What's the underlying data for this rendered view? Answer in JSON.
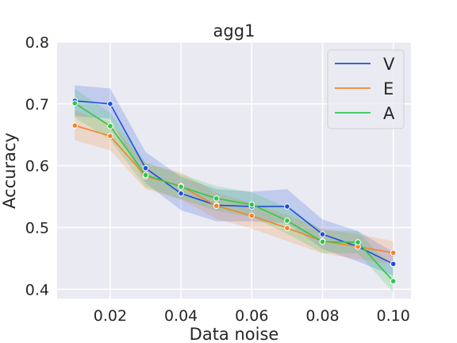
{
  "chart_data": {
    "type": "line",
    "title": "agg1",
    "xlabel": "Data noise",
    "ylabel": "Accuracy",
    "xlim": [
      0.005,
      0.105
    ],
    "ylim": [
      0.385,
      0.8
    ],
    "xticks": [
      "0.02",
      "0.04",
      "0.06",
      "0.08",
      "0.10"
    ],
    "yticks": [
      "0.4",
      "0.5",
      "0.6",
      "0.7",
      "0.8"
    ],
    "grid": true,
    "legend_position": "top-right",
    "x": [
      0.01,
      0.02,
      0.03,
      0.04,
      0.05,
      0.06,
      0.07,
      0.08,
      0.09,
      0.1
    ],
    "series": [
      {
        "name": "V",
        "color": "#1f4fe0",
        "values": [
          0.705,
          0.7,
          0.596,
          0.555,
          0.536,
          0.534,
          0.534,
          0.489,
          0.469,
          0.441
        ],
        "lower": [
          0.68,
          0.676,
          0.572,
          0.528,
          0.51,
          0.51,
          0.507,
          0.465,
          0.445,
          0.422
        ],
        "upper": [
          0.73,
          0.725,
          0.622,
          0.582,
          0.562,
          0.558,
          0.562,
          0.513,
          0.494,
          0.46
        ]
      },
      {
        "name": "E",
        "color": "#f5832a",
        "values": [
          0.665,
          0.648,
          0.583,
          0.567,
          0.535,
          0.519,
          0.499,
          0.478,
          0.469,
          0.459
        ],
        "lower": [
          0.641,
          0.625,
          0.562,
          0.545,
          0.514,
          0.498,
          0.478,
          0.458,
          0.449,
          0.44
        ],
        "upper": [
          0.689,
          0.671,
          0.604,
          0.589,
          0.556,
          0.54,
          0.52,
          0.498,
          0.489,
          0.478
        ]
      },
      {
        "name": "A",
        "color": "#2ec84a",
        "values": [
          0.701,
          0.664,
          0.585,
          0.566,
          0.547,
          0.537,
          0.511,
          0.477,
          0.476,
          0.413
        ],
        "lower": [
          0.678,
          0.642,
          0.565,
          0.546,
          0.527,
          0.517,
          0.49,
          0.459,
          0.458,
          0.395
        ],
        "upper": [
          0.724,
          0.686,
          0.605,
          0.586,
          0.567,
          0.557,
          0.532,
          0.495,
          0.494,
          0.432
        ]
      }
    ]
  }
}
